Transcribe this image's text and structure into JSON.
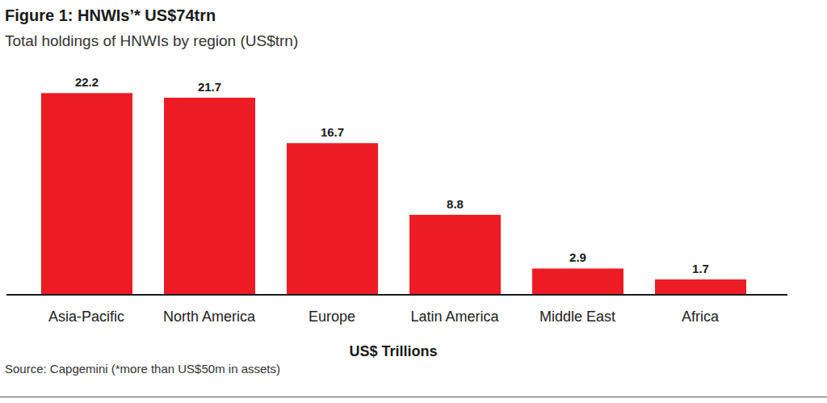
{
  "chart_data": {
    "type": "bar",
    "title": "Figure 1: HNWIs’* US$74trn",
    "subtitle": "Total holdings of HNWIs by region (US$trn)",
    "x_label": "US$ Trillions",
    "source": "Source: Capgemini (*more than US$50m in assets)",
    "categories": [
      "Asia-Pacific",
      "North America",
      "Europe",
      "Latin America",
      "Middle East",
      "Africa"
    ],
    "values": [
      22.2,
      21.7,
      16.7,
      8.8,
      2.9,
      1.7
    ],
    "color": "#ed1c24",
    "ylim": [
      0,
      24
    ],
    "data_labels": true,
    "tick_labels": "x",
    "grid": false
  }
}
